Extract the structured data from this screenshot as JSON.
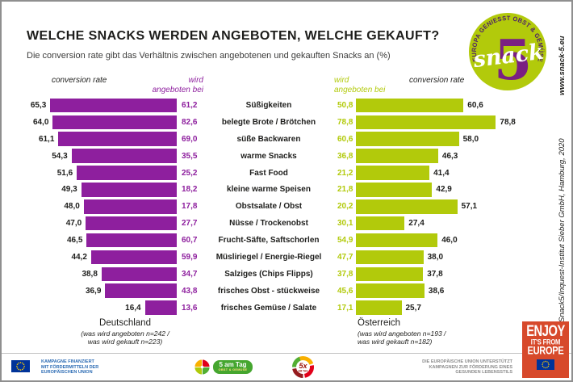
{
  "chart_data": {
    "type": "bar",
    "orientation": "horizontal mirrored dual chart (Deutschland links, Österreich rechts)",
    "title": "WELCHE SNACKS WERDEN ANGEBOTEN, WELCHE GEKAUFT?",
    "subtitle": "Die conversion rate gibt das Verhältnis zwischen angebotenen und gekauften Snacks an (%)",
    "unit": "%",
    "xlim": [
      0,
      85
    ],
    "grid": false,
    "categories": [
      "Süßigkeiten",
      "belegte Brote / Brötchen",
      "süße Backwaren",
      "warme Snacks",
      "Fast Food",
      "kleine warme Speisen",
      "Obstsalate / Obst",
      "Nüsse / Trockenobst",
      "Frucht-Säfte, Saftschorlen",
      "Müsliriegel / Energie-Riegel",
      "Salziges (Chips Flipps)",
      "frisches Obst - stückweise",
      "frisches Gemüse / Salate"
    ],
    "series": [
      {
        "name": "Deutschland conversion rate",
        "values": [
          65.3,
          64.0,
          61.1,
          54.3,
          51.6,
          49.3,
          48.0,
          47.0,
          46.5,
          44.2,
          38.8,
          36.9,
          16.4
        ]
      },
      {
        "name": "Deutschland wird angeboten bei",
        "values": [
          61.2,
          82.6,
          69.0,
          35.5,
          25.2,
          18.2,
          17.8,
          27.7,
          60.7,
          59.9,
          34.7,
          43.8,
          13.6
        ]
      },
      {
        "name": "Österreich wird angeboten bei",
        "values": [
          50.8,
          78.8,
          60.6,
          36.8,
          21.2,
          21.8,
          20.2,
          30.1,
          54.9,
          47.7,
          37.8,
          45.6,
          17.1
        ]
      },
      {
        "name": "Österreich conversion rate",
        "values": [
          60.6,
          78.8,
          58.0,
          46.3,
          41.4,
          42.9,
          57.1,
          27.4,
          46.0,
          38.0,
          37.8,
          38.6,
          25.7
        ]
      }
    ],
    "legend": {
      "left_value_label": "conversion rate",
      "left_bar_label": [
        "wird",
        "angeboten bei"
      ],
      "right_bar_label": [
        "wird",
        "angeboten bei"
      ],
      "right_value_label": "conversion rate"
    },
    "groups": [
      {
        "country": "Deutschland",
        "note": [
          "(was wird angeboten n=242 /",
          "was wird gekauft n=223)"
        ]
      },
      {
        "country": "Österreich",
        "note": [
          "(was wird angeboten n=193 /",
          "was wird gekauft n=182)"
        ]
      }
    ]
  },
  "logo": {
    "arc_text": "EUROPA GENIESST OBST & GEMÜSE",
    "word": "snack",
    "number": "5"
  },
  "side": {
    "website": "www.snack-5.eu",
    "copyright": "©Snack5/Inquest-Institut Sieber GmbH, Hamburg, 2020"
  },
  "footer": {
    "campaign_funding": [
      "KAMPAGNE FINANZIERT",
      "MIT FÖRDERMITTELN DER",
      "EUROPÄISCHEN UNION"
    ],
    "five_am_tag": {
      "title": "5 am Tag",
      "subtitle": "OBST & GEMÜSE"
    },
    "five_x_am_tag": {
      "title": "5x",
      "subtitle": "AM TAG"
    },
    "eu_support": [
      "DIE EUROPÄISCHE UNION UNTERSTÜTZT",
      "KAMPAGNEN ZUR FÖRDERUNG EINES",
      "GESUNDEN LEBENSSTILS"
    ],
    "enjoy_badge": [
      "ENJOY",
      "IT'S FROM",
      "EUROPE"
    ]
  },
  "colors": {
    "germany_bar": "#8e1f9e",
    "austria_bar": "#b2ca0b",
    "enjoy_badge": "#d7492b",
    "eu_blue": "#003399",
    "eu_stars": "#ffcc00",
    "footer_blue": "#2d6cb4",
    "footer_gray": "#8c8c8c",
    "logo_green": "#b2ca0b",
    "logo_purple": "#7a1f82",
    "logo_arc_text": "#4d2068"
  }
}
